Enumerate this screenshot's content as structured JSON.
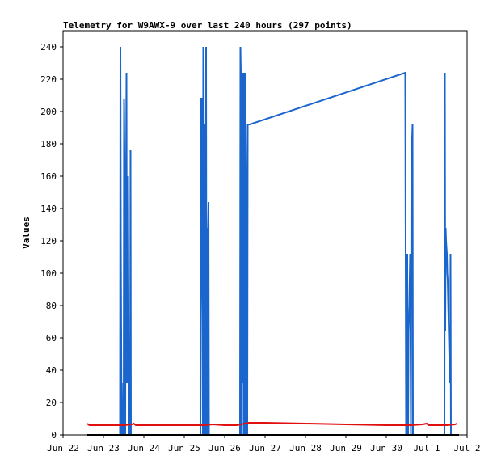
{
  "chart_data": {
    "type": "line",
    "title": "Telemetry for W9AWX-9 over last 240 hours (297 points)",
    "xlabel": "",
    "ylabel": "Values",
    "xlim": [
      "Jun 22",
      "Jul 2"
    ],
    "ylim": [
      0,
      250
    ],
    "x_ticks": [
      "Jun 22",
      "Jun 23",
      "Jun 24",
      "Jun 25",
      "Jun 26",
      "Jun 27",
      "Jun 28",
      "Jun 29",
      "Jun 30",
      "Jul 1",
      "Jul 2"
    ],
    "y_ticks": [
      0,
      20,
      40,
      60,
      80,
      100,
      120,
      140,
      160,
      180,
      200,
      220,
      240
    ],
    "grid": false,
    "legend": "none",
    "colors": {
      "series_blue": "#1a66cc",
      "series_red": "#e01010",
      "series_black": "#000000",
      "axis": "#000000"
    },
    "series": [
      {
        "color": "#1a66cc",
        "points": [
          [
            1.41,
            0
          ],
          [
            1.42,
            240
          ],
          [
            1.43,
            120
          ],
          [
            1.45,
            0
          ],
          [
            1.47,
            16
          ],
          [
            1.48,
            0
          ],
          [
            1.49,
            32
          ],
          [
            1.5,
            0
          ],
          [
            1.51,
            208
          ],
          [
            1.52,
            176
          ],
          [
            1.53,
            120
          ],
          [
            1.54,
            0
          ],
          [
            1.55,
            120
          ],
          [
            1.56,
            160
          ],
          [
            1.57,
            224
          ],
          [
            1.58,
            32
          ],
          [
            1.6,
            120
          ],
          [
            1.61,
            160
          ],
          [
            1.62,
            80
          ],
          [
            1.63,
            0
          ],
          [
            1.66,
            0
          ],
          [
            1.67,
            176
          ],
          [
            1.68,
            0
          ],
          [
            3.4,
            0
          ],
          [
            3.41,
            208
          ],
          [
            3.43,
            208
          ],
          [
            3.44,
            96
          ],
          [
            3.45,
            72
          ],
          [
            3.46,
            0
          ],
          [
            3.47,
            240
          ],
          [
            3.48,
            0
          ],
          [
            3.49,
            128
          ],
          [
            3.5,
            96
          ],
          [
            3.51,
            192
          ],
          [
            3.52,
            0
          ],
          [
            3.53,
            120
          ],
          [
            3.54,
            240
          ],
          [
            3.55,
            0
          ],
          [
            3.56,
            120
          ],
          [
            3.57,
            128
          ],
          [
            3.58,
            0
          ],
          [
            3.59,
            128
          ],
          [
            3.6,
            144
          ],
          [
            3.61,
            0
          ],
          [
            4.38,
            0
          ],
          [
            4.39,
            240
          ],
          [
            4.4,
            224
          ],
          [
            4.41,
            0
          ],
          [
            4.42,
            144
          ],
          [
            4.43,
            0
          ],
          [
            4.44,
            224
          ],
          [
            4.45,
            160
          ],
          [
            4.46,
            32
          ],
          [
            4.47,
            224
          ],
          [
            4.48,
            0
          ],
          [
            4.49,
            104
          ],
          [
            4.5,
            224
          ],
          [
            4.51,
            0
          ],
          [
            4.52,
            192
          ],
          [
            4.53,
            160
          ],
          [
            4.54,
            64
          ],
          [
            4.56,
            0
          ],
          [
            4.57,
            192
          ],
          [
            4.62,
            192
          ],
          [
            8.47,
            224
          ],
          [
            8.48,
            112
          ],
          [
            8.49,
            0
          ],
          [
            8.5,
            0
          ],
          [
            8.51,
            40
          ],
          [
            8.52,
            112
          ],
          [
            8.53,
            0
          ],
          [
            8.54,
            0
          ],
          [
            8.55,
            64
          ],
          [
            8.57,
            80
          ],
          [
            8.58,
            96
          ],
          [
            8.59,
            112
          ],
          [
            8.61,
            0
          ],
          [
            8.62,
            152
          ],
          [
            8.63,
            168
          ],
          [
            8.64,
            184
          ],
          [
            8.65,
            192
          ],
          [
            8.66,
            0
          ],
          [
            9.44,
            0
          ],
          [
            9.45,
            224
          ],
          [
            9.46,
            64
          ],
          [
            9.47,
            128
          ],
          [
            9.48,
            120
          ],
          [
            9.5,
            112
          ],
          [
            9.51,
            100
          ],
          [
            9.52,
            96
          ],
          [
            9.54,
            72
          ],
          [
            9.56,
            48
          ],
          [
            9.58,
            32
          ],
          [
            9.59,
            112
          ],
          [
            9.6,
            0
          ]
        ]
      },
      {
        "color": "#e01010",
        "points": [
          [
            0.6,
            7
          ],
          [
            0.65,
            6
          ],
          [
            1.0,
            6
          ],
          [
            1.5,
            6
          ],
          [
            1.7,
            6.5
          ],
          [
            1.75,
            7
          ],
          [
            1.8,
            6
          ],
          [
            2.0,
            6
          ],
          [
            3.0,
            6
          ],
          [
            3.5,
            6
          ],
          [
            3.7,
            6.5
          ],
          [
            4.0,
            6
          ],
          [
            4.3,
            6
          ],
          [
            4.6,
            7.5
          ],
          [
            5.0,
            7.5
          ],
          [
            6.0,
            7
          ],
          [
            7.0,
            6.5
          ],
          [
            8.0,
            6
          ],
          [
            8.6,
            6
          ],
          [
            8.9,
            6.5
          ],
          [
            9.0,
            7
          ],
          [
            9.05,
            6
          ],
          [
            9.5,
            6
          ],
          [
            9.7,
            6.5
          ],
          [
            9.75,
            7
          ]
        ]
      },
      {
        "color": "#000000",
        "points": [
          [
            0.6,
            0
          ],
          [
            9.8,
            0
          ]
        ]
      }
    ]
  }
}
